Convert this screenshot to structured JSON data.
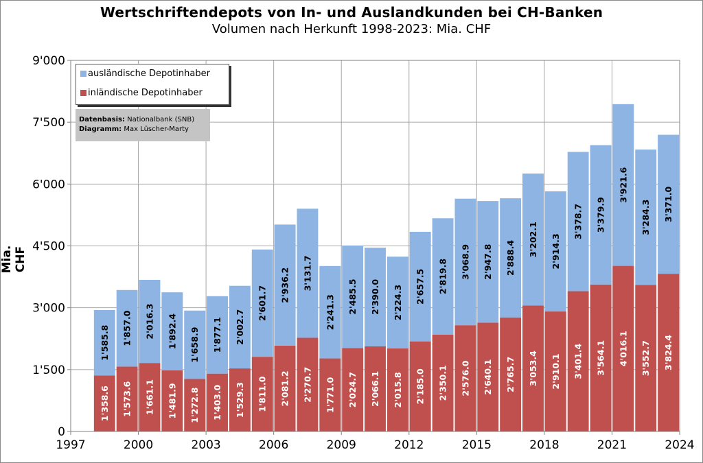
{
  "chart_data": {
    "type": "bar",
    "stacked": true,
    "title": "Wertschriftendepots  von In- und Auslandkunden bei CH-Banken",
    "subtitle": "Volumen nach Herkunft 1998-2023: Mia. CHF",
    "ylabel": "Mia. CHF",
    "xlim": [
      1997,
      2024
    ],
    "ylim": [
      0,
      9000
    ],
    "x_ticks": [
      "1997",
      "2000",
      "2003",
      "2006",
      "2009",
      "2012",
      "2015",
      "2018",
      "2021",
      "2024"
    ],
    "y_ticks": [
      "0",
      "1'500",
      "3'000",
      "4'500",
      "6'000",
      "7'500",
      "9'000"
    ],
    "grid": true,
    "legend_position": "top-left",
    "x": [
      1998,
      1999,
      2000,
      2001,
      2002,
      2003,
      2004,
      2005,
      2006,
      2007,
      2008,
      2009,
      2010,
      2011,
      2012,
      2013,
      2014,
      2015,
      2016,
      2017,
      2018,
      2019,
      2020,
      2021,
      2022,
      2023
    ],
    "series": [
      {
        "name": "inländische Depotinhaber",
        "color": "#c0504d",
        "values": [
          1358.6,
          1573.6,
          1661.1,
          1481.9,
          1272.8,
          1403.0,
          1529.3,
          1811.0,
          2081.2,
          2270.7,
          1771.0,
          2024.7,
          2066.1,
          2015.8,
          2185.0,
          2350.1,
          2576.0,
          2640.1,
          2765.7,
          3053.4,
          2910.1,
          3401.4,
          3564.1,
          4016.1,
          3552.7,
          3824.4
        ],
        "labels": [
          "1'358.6",
          "1'573.6",
          "1'661.1",
          "1'481.9",
          "1'272.8",
          "1'403.0",
          "1'529.3",
          "1'811.0",
          "2'081.2",
          "2'270.7",
          "1'771.0",
          "2'024.7",
          "2'066.1",
          "2'015.8",
          "2'185.0",
          "2'350.1",
          "2'576.0",
          "2'640.1",
          "2'765.7",
          "3'053.4",
          "2'910.1",
          "3'401.4",
          "3'564.1",
          "4'016.1",
          "3'552.7",
          "3'824.4"
        ]
      },
      {
        "name": "ausländische Depotinhaber",
        "color": "#8db4e2",
        "values": [
          1585.8,
          1857.0,
          2016.3,
          1892.4,
          1658.9,
          1877.1,
          2002.7,
          2601.7,
          2936.2,
          3131.7,
          2241.3,
          2485.5,
          2390.0,
          2224.3,
          2657.5,
          2819.8,
          3068.9,
          2947.8,
          2888.4,
          3202.1,
          2914.3,
          3378.7,
          3379.9,
          3921.6,
          3284.3,
          3371.0
        ],
        "labels": [
          "1'585.8",
          "1'857.0",
          "2'016.3",
          "1'892.4",
          "1'658.9",
          "1'877.1",
          "2'002.7",
          "2'601.7",
          "2'936.2",
          "3'131.7",
          "2'241.3",
          "2'485.5",
          "2'390.0",
          "2'224.3",
          "2'657.5",
          "2'819.8",
          "3'068.9",
          "2'947.8",
          "2'888.4",
          "3'202.1",
          "2'914.3",
          "3'378.7",
          "3'379.9",
          "3'921.6",
          "3'284.3",
          "3'371.0"
        ]
      }
    ]
  },
  "legend": {
    "foreign_label": "ausländische Depotinhaber",
    "domestic_label": "inländische Depotinhaber"
  },
  "source": {
    "data_key": "Datenbasis:",
    "data_value": "Nationalbank (SNB)",
    "diagram_key": "Diagramm:",
    "diagram_value": "Max Lüscher-Marty"
  }
}
